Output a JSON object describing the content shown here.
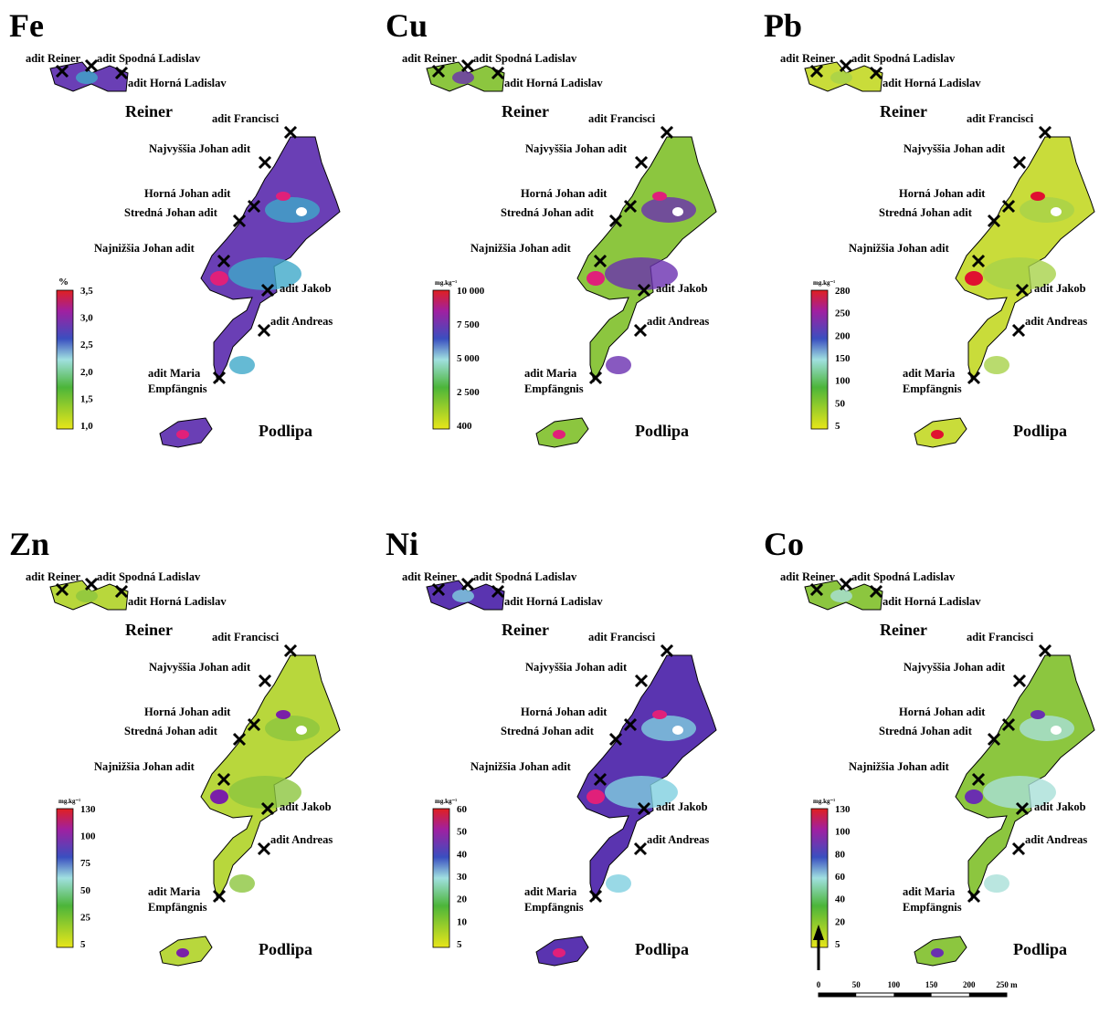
{
  "panels": [
    {
      "title": "Fe",
      "fill": "#6a3fb5",
      "accent": "#3fa9c9",
      "hot": "#e0207a",
      "legend": {
        "unit": "%",
        "ticks": [
          "3,5",
          "3,0",
          "2,5",
          "2,0",
          "1,5",
          "1,0"
        ]
      }
    },
    {
      "title": "Cu",
      "fill": "#8cc63f",
      "accent": "#6a2fb0",
      "hot": "#e0207a",
      "legend": {
        "unit": "mg.kg⁻¹",
        "ticks": [
          "10 000",
          "7 500",
          "5 000",
          "2 500",
          "400"
        ]
      }
    },
    {
      "title": "Pb",
      "fill": "#c9dc3a",
      "accent": "#a8d24a",
      "hot": "#e01030",
      "legend": {
        "unit": "mg.kg⁻¹",
        "ticks": [
          "280",
          "250",
          "200",
          "150",
          "100",
          "50",
          "5"
        ]
      }
    },
    {
      "title": "Zn",
      "fill": "#b8d73c",
      "accent": "#8cc63f",
      "hot": "#7a1fa8",
      "legend": {
        "unit": "mg.kg⁻¹",
        "ticks": [
          "130",
          "100",
          "75",
          "50",
          "25",
          "5"
        ]
      }
    },
    {
      "title": "Ni",
      "fill": "#5a34b0",
      "accent": "#7fd0e0",
      "hot": "#e0207a",
      "legend": {
        "unit": "mg.kg⁻¹",
        "ticks": [
          "60",
          "50",
          "40",
          "30",
          "20",
          "10",
          "5"
        ]
      }
    },
    {
      "title": "Co",
      "fill": "#8cc63f",
      "accent": "#a9e0d8",
      "hot": "#6a2fb0",
      "legend": {
        "unit": "mg.kg⁻¹",
        "ticks": [
          "130",
          "100",
          "80",
          "60",
          "40",
          "20",
          "5"
        ]
      }
    }
  ],
  "sites": [
    "adit Reiner",
    "adit Spodná Ladislav",
    "adit Horná Ladislav",
    "adit Francisci",
    "Najvyššia Johan adit",
    "Horná Johan adit",
    "Stredná Johan adit",
    "Najnižšia Johan adit",
    "adit  Jakob",
    "adit Andreas",
    "adit Maria",
    "Empfängnis"
  ],
  "places": [
    "Reiner",
    "Podlipa"
  ],
  "scale_bar": {
    "labels": [
      "0",
      "50",
      "100",
      "150",
      "200",
      "250 m"
    ]
  }
}
